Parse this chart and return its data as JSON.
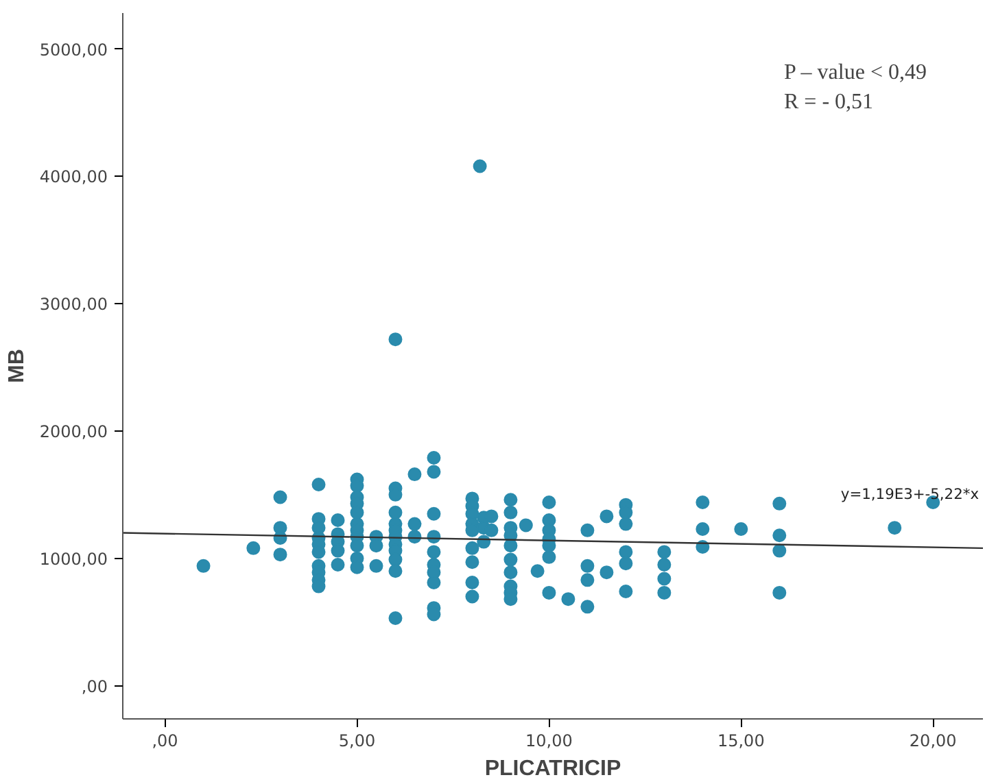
{
  "chart_data": {
    "type": "scatter",
    "xlabel": "PLICATRICIP",
    "ylabel": "MB",
    "grid": false,
    "xlim": [
      -1.1,
      21.3
    ],
    "ylim": [
      -261,
      5283
    ],
    "xticks": [
      {
        "value": 0,
        "label": ",00"
      },
      {
        "value": 5,
        "label": "5,00"
      },
      {
        "value": 10,
        "label": "10,00"
      },
      {
        "value": 15,
        "label": "15,00"
      },
      {
        "value": 20,
        "label": "20,00"
      }
    ],
    "yticks": [
      {
        "value": 0,
        "label": ",00"
      },
      {
        "value": 1000,
        "label": "1000,00"
      },
      {
        "value": 2000,
        "label": "2000,00"
      },
      {
        "value": 3000,
        "label": "3000,00"
      },
      {
        "value": 4000,
        "label": "4000,00"
      },
      {
        "value": 5000,
        "label": "5000,00"
      }
    ],
    "series": [
      {
        "color": "#2a8bad",
        "marker": "circle",
        "x": [
          1,
          2.3,
          3,
          3,
          3,
          3,
          4,
          4,
          4,
          4,
          4,
          4,
          4,
          4,
          4,
          4,
          4.5,
          4.5,
          4.5,
          4.5,
          4.5,
          5,
          5,
          5,
          5,
          5,
          5,
          5,
          5,
          5,
          5,
          5,
          5.5,
          5.5,
          5.5,
          6,
          6,
          6,
          6,
          6,
          6,
          6,
          6,
          6,
          6,
          6,
          6,
          6.5,
          6.5,
          6.5,
          7,
          7,
          7,
          7,
          7,
          7,
          7,
          7,
          7,
          7,
          8,
          8,
          8,
          8,
          8,
          8,
          8,
          8,
          8,
          8.2,
          8.3,
          8.3,
          8.3,
          8.5,
          8.5,
          9,
          9,
          9,
          9,
          9,
          9,
          9,
          9,
          9,
          9,
          9.4,
          9.7,
          10,
          10,
          10,
          10,
          10,
          10,
          10,
          10.5,
          11,
          11,
          11,
          11,
          11.5,
          11.5,
          12,
          12,
          12,
          12,
          12,
          12,
          13,
          13,
          13,
          13,
          14,
          14,
          14,
          15,
          16,
          16,
          16,
          16,
          19,
          20
        ],
        "values": [
          940,
          1080,
          1480,
          1240,
          1160,
          1030,
          1580,
          1310,
          1240,
          1160,
          1110,
          1050,
          940,
          890,
          830,
          780,
          1300,
          1190,
          1130,
          1060,
          950,
          1620,
          1570,
          1480,
          1430,
          1360,
          1270,
          1220,
          1170,
          1100,
          1000,
          930,
          1170,
          1100,
          940,
          1550,
          1500,
          1360,
          1270,
          1220,
          1170,
          1110,
          1060,
          990,
          900,
          2720,
          530,
          1660,
          1270,
          1170,
          1790,
          1680,
          1350,
          1170,
          1050,
          950,
          890,
          810,
          610,
          560,
          1470,
          1410,
          1350,
          1270,
          1220,
          1080,
          970,
          810,
          700,
          4080,
          1320,
          1240,
          1130,
          1330,
          1220,
          1460,
          1360,
          1240,
          1180,
          1100,
          990,
          890,
          780,
          730,
          680,
          1260,
          900,
          1440,
          1300,
          1220,
          1150,
          1010,
          730,
          1100,
          680,
          1220,
          940,
          830,
          620,
          1330,
          890,
          1420,
          1360,
          1270,
          1050,
          960,
          740,
          1050,
          950,
          840,
          730,
          1440,
          1230,
          1090,
          1230,
          1430,
          1180,
          1060,
          730,
          1240,
          1440
        ]
      },
      {
        "type": "line",
        "color": "#333333",
        "x": [
          -1.1,
          21.3
        ],
        "values": [
          1200,
          1080
        ]
      }
    ],
    "annotations": [
      "P – value < 0,49\nR = - 0,51",
      "y=1,19E3+-5,22*x"
    ]
  }
}
